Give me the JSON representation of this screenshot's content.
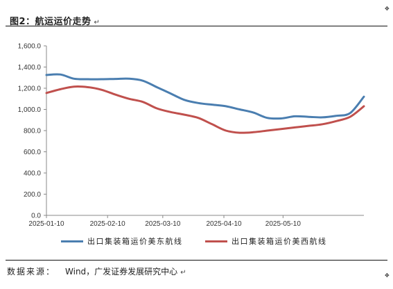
{
  "header": {
    "title": "图2：航运运价走势",
    "mark": "↵"
  },
  "chart_data": {
    "type": "line",
    "title": "",
    "xlabel": "",
    "ylabel": "",
    "ylim": [
      0,
      1600
    ],
    "yticks": [
      "0.0",
      "200.0",
      "400.0",
      "600.0",
      "800.0",
      "1,000.0",
      "1,200.0",
      "1,400.0",
      "1,600.0"
    ],
    "x_ticks": [
      "2025-01-10",
      "2025-02-10",
      "2025-03-10",
      "2025-04-10",
      "2025-05-10"
    ],
    "x": [
      "2025-01-10",
      "2025-01-17",
      "2025-01-24",
      "2025-01-31",
      "2025-02-07",
      "2025-02-14",
      "2025-02-21",
      "2025-02-28",
      "2025-03-07",
      "2025-03-14",
      "2025-03-21",
      "2025-03-28",
      "2025-04-04",
      "2025-04-11",
      "2025-04-18",
      "2025-04-25",
      "2025-05-02",
      "2025-05-09",
      "2025-05-16",
      "2025-05-23",
      "2025-05-30",
      "2025-06-06",
      "2025-06-13",
      "2025-06-20"
    ],
    "series": [
      {
        "name": "出口集装箱运价美东航线",
        "color": "#4a7eb0",
        "values": [
          1325,
          1330,
          1290,
          1285,
          1285,
          1288,
          1290,
          1270,
          1210,
          1150,
          1090,
          1060,
          1045,
          1030,
          1000,
          970,
          920,
          915,
          935,
          930,
          925,
          940,
          965,
          1120
        ]
      },
      {
        "name": "出口集装箱运价美西航线",
        "color": "#c0504d",
        "values": [
          1155,
          1190,
          1215,
          1210,
          1185,
          1140,
          1100,
          1070,
          1010,
          975,
          950,
          920,
          860,
          800,
          780,
          785,
          800,
          815,
          830,
          845,
          860,
          890,
          930,
          1030
        ]
      }
    ],
    "legend": "bottom",
    "grid": false
  },
  "source": {
    "label": "数据来源：",
    "text": "Wind，广发证券发展研究中心",
    "mark": "↵"
  }
}
